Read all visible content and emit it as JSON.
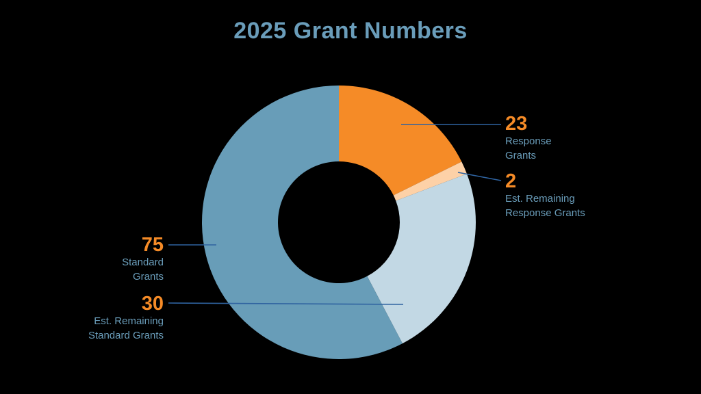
{
  "title": "2025 Grant Numbers",
  "colors": {
    "response": "#f58b27",
    "est_response": "#fdd1a7",
    "est_standard": "#c2d8e4",
    "standard": "#689db8",
    "leader": "#2f63a0",
    "title": "#6a9dba"
  },
  "labels": {
    "response": {
      "value": "23",
      "line1": "Response",
      "line2": "Grants"
    },
    "est_response": {
      "value": "2",
      "line1": "Est. Remaining",
      "line2": "Response Grants"
    },
    "standard": {
      "value": "75",
      "line1": "Standard",
      "line2": "Grants"
    },
    "est_standard": {
      "value": "30",
      "line1": "Est. Remaining",
      "line2": "Standard Grants"
    }
  },
  "chart_data": {
    "type": "pie",
    "variant": "donut",
    "title": "2025 Grant Numbers",
    "categories": [
      "Response Grants",
      "Est. Remaining Response Grants",
      "Est. Remaining Standard Grants",
      "Standard Grants"
    ],
    "values": [
      23,
      2,
      30,
      75
    ],
    "colors": [
      "#f58b27",
      "#fdd1a7",
      "#c2d8e4",
      "#689db8"
    ],
    "start_angle": "top (12 o'clock), clockwise",
    "legend": "callout labels with leader lines"
  }
}
